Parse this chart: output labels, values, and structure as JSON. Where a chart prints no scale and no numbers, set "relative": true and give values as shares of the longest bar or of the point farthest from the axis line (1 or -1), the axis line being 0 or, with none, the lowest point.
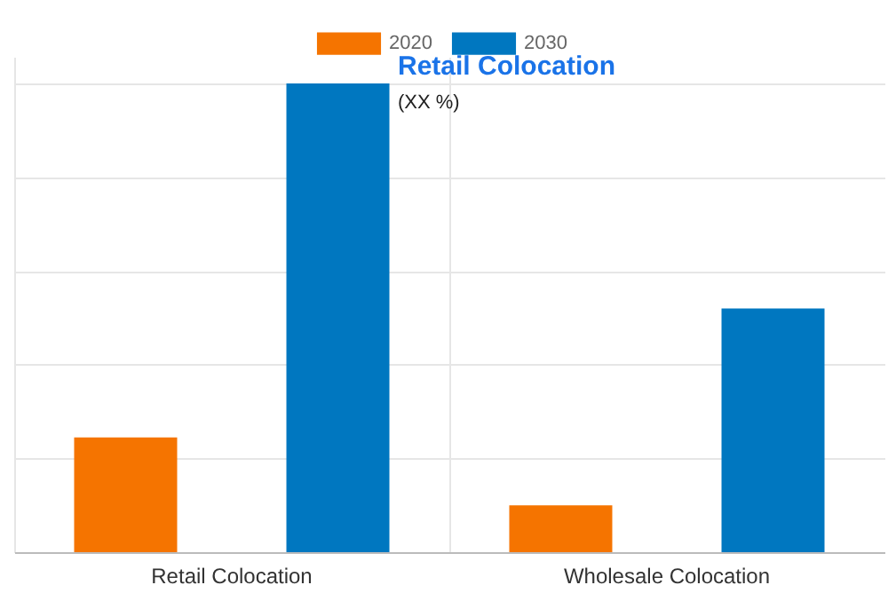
{
  "chart_data": {
    "type": "bar",
    "relative": true,
    "categories": [
      "Retail Colocation",
      "Wholesale Colocation"
    ],
    "series": [
      {
        "name": "2020",
        "color": "#f57400",
        "values": [
          0.245,
          0.1
        ]
      },
      {
        "name": "2030",
        "color": "#0077c0",
        "values": [
          1,
          0.52
        ]
      }
    ],
    "annotations": [
      "Retail Colocation",
      "(XX %)"
    ],
    "legend": "top",
    "grid": true
  }
}
